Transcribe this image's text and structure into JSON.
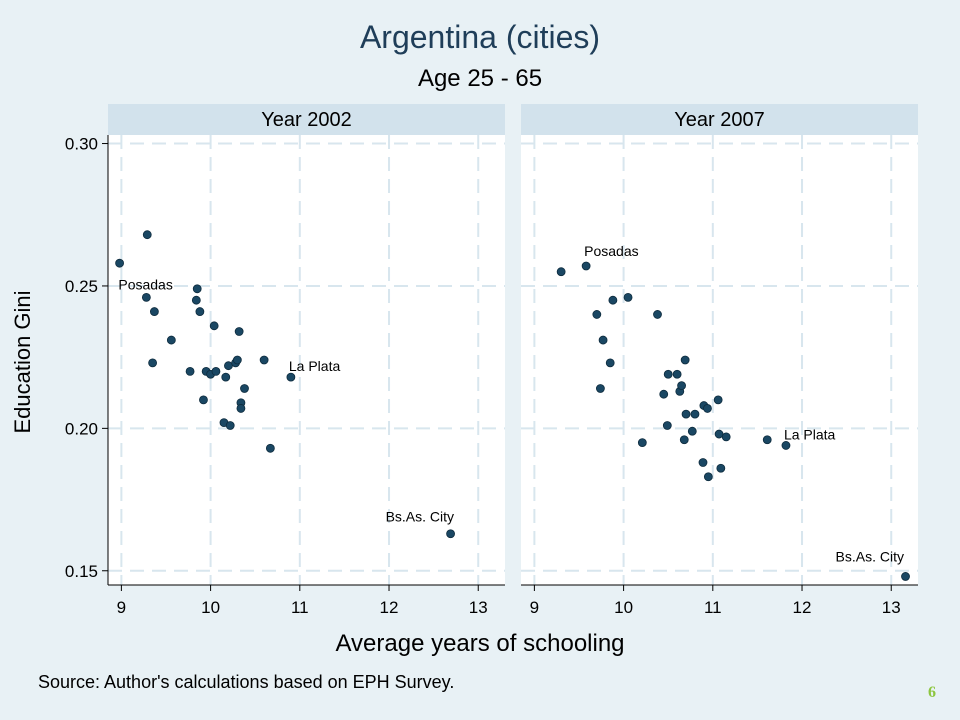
{
  "title": "Argentina (cities)",
  "subtitle": "Age 25 - 65",
  "ylabel": "Education Gini",
  "xlabel": "Average years of schooling",
  "source": "Source: Author's calculations based on EPH Survey.",
  "slide_number": "6",
  "colors": {
    "background": "#e8f1f5",
    "panel_header": "#d2e2ec",
    "point": "#1a4763",
    "grid": "#d8e6ee",
    "slide_number": "#8dc63f"
  },
  "chart_data": [
    {
      "type": "scatter",
      "panel_title": "Year 2002",
      "xlim": [
        8.85,
        13.3
      ],
      "ylim": [
        0.145,
        0.303
      ],
      "xticks": [
        9,
        10,
        11,
        12,
        13
      ],
      "yticks": [
        0.15,
        0.2,
        0.25,
        0.3
      ],
      "ytick_labels": [
        "0.15",
        "0.20",
        "0.25",
        "0.30"
      ],
      "grid": true,
      "points": [
        [
          8.98,
          0.258
        ],
        [
          9.29,
          0.268
        ],
        [
          9.28,
          0.246
        ],
        [
          9.37,
          0.241
        ],
        [
          9.35,
          0.223
        ],
        [
          9.56,
          0.231
        ],
        [
          9.77,
          0.22
        ],
        [
          9.84,
          0.245
        ],
        [
          9.85,
          0.249
        ],
        [
          9.88,
          0.241
        ],
        [
          9.92,
          0.21
        ],
        [
          9.95,
          0.22
        ],
        [
          10.0,
          0.219
        ],
        [
          10.04,
          0.236
        ],
        [
          10.06,
          0.22
        ],
        [
          10.15,
          0.202
        ],
        [
          10.17,
          0.218
        ],
        [
          10.2,
          0.222
        ],
        [
          10.22,
          0.201
        ],
        [
          10.28,
          0.223
        ],
        [
          10.3,
          0.224
        ],
        [
          10.32,
          0.234
        ],
        [
          10.34,
          0.209
        ],
        [
          10.34,
          0.207
        ],
        [
          10.38,
          0.214
        ],
        [
          10.6,
          0.224
        ],
        [
          10.67,
          0.193
        ],
        [
          10.9,
          0.218
        ],
        [
          12.69,
          0.163
        ]
      ],
      "annotations": [
        {
          "text": "Posadas",
          "x": 9.28,
          "y": 0.246
        },
        {
          "text": "La Plata",
          "x": 10.9,
          "y": 0.218
        },
        {
          "text": "Bs.As. City",
          "x": 12.69,
          "y": 0.163
        }
      ]
    },
    {
      "type": "scatter",
      "panel_title": "Year 2007",
      "xlim": [
        8.85,
        13.3
      ],
      "ylim": [
        0.145,
        0.303
      ],
      "xticks": [
        9,
        10,
        11,
        12,
        13
      ],
      "yticks": [
        0.15,
        0.2,
        0.25,
        0.3
      ],
      "grid": true,
      "points": [
        [
          9.3,
          0.255
        ],
        [
          9.58,
          0.257
        ],
        [
          9.7,
          0.24
        ],
        [
          9.74,
          0.214
        ],
        [
          9.77,
          0.231
        ],
        [
          9.85,
          0.223
        ],
        [
          9.88,
          0.245
        ],
        [
          10.05,
          0.246
        ],
        [
          10.21,
          0.195
        ],
        [
          10.38,
          0.24
        ],
        [
          10.45,
          0.212
        ],
        [
          10.49,
          0.201
        ],
        [
          10.5,
          0.219
        ],
        [
          10.6,
          0.219
        ],
        [
          10.63,
          0.213
        ],
        [
          10.65,
          0.215
        ],
        [
          10.68,
          0.196
        ],
        [
          10.69,
          0.224
        ],
        [
          10.7,
          0.205
        ],
        [
          10.77,
          0.199
        ],
        [
          10.8,
          0.205
        ],
        [
          10.89,
          0.188
        ],
        [
          10.9,
          0.208
        ],
        [
          10.94,
          0.207
        ],
        [
          10.95,
          0.183
        ],
        [
          11.06,
          0.21
        ],
        [
          11.07,
          0.198
        ],
        [
          11.09,
          0.186
        ],
        [
          11.15,
          0.197
        ],
        [
          11.61,
          0.196
        ],
        [
          11.82,
          0.194
        ],
        [
          13.16,
          0.148
        ]
      ],
      "annotations": [
        {
          "text": "Posadas",
          "x": 9.58,
          "y": 0.257
        },
        {
          "text": "La Plata",
          "x": 11.82,
          "y": 0.194
        },
        {
          "text": "Bs.As. City",
          "x": 13.16,
          "y": 0.148
        }
      ]
    }
  ]
}
